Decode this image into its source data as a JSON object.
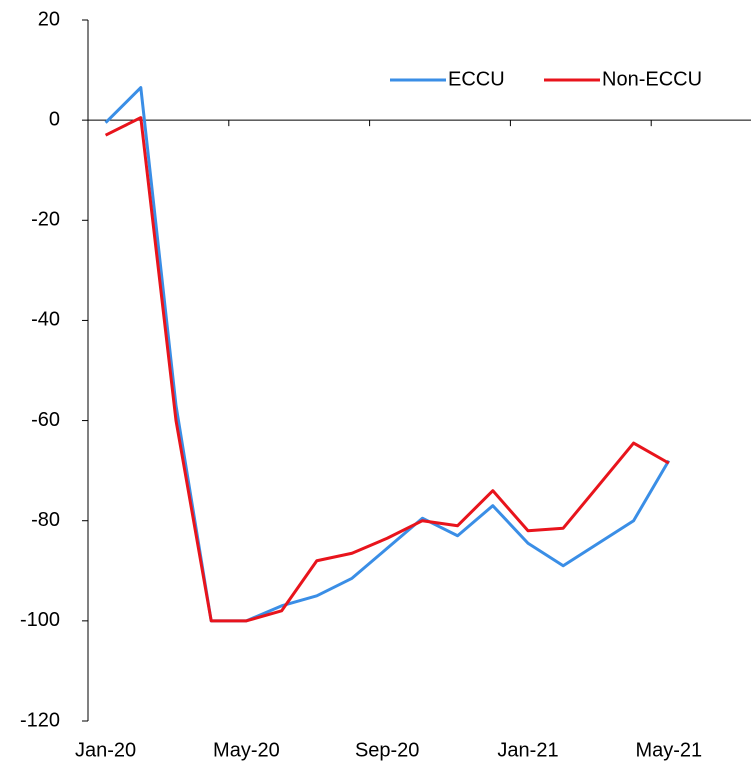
{
  "chart_data": {
    "type": "line",
    "categories": [
      "Jan-20",
      null,
      null,
      null,
      "May-20",
      null,
      null,
      null,
      "Sep-20",
      null,
      null,
      null,
      "Jan-21",
      null,
      null,
      null,
      "May-21",
      null
    ],
    "series": [
      {
        "name": "ECCU",
        "color": "#3a8ee6",
        "values": [
          -0.5,
          6.5,
          -57,
          -100,
          -100,
          -97,
          -95,
          -91.5,
          -85.5,
          -79.5,
          -83,
          -77,
          -84.5,
          -89,
          -84.5,
          -80,
          -68,
          null
        ]
      },
      {
        "name": "Non-ECCU",
        "color": "#e8141c",
        "values": [
          -3,
          0.5,
          -60,
          -100,
          -100,
          -98,
          -88,
          -86.5,
          -83.5,
          -80,
          -81,
          -74,
          -82,
          -81.5,
          -73,
          -64.5,
          -68.5,
          null
        ]
      }
    ],
    "ylim": [
      -120,
      20
    ],
    "yticks": [
      20,
      0,
      -20,
      -40,
      -60,
      -80,
      -100,
      -120
    ]
  }
}
